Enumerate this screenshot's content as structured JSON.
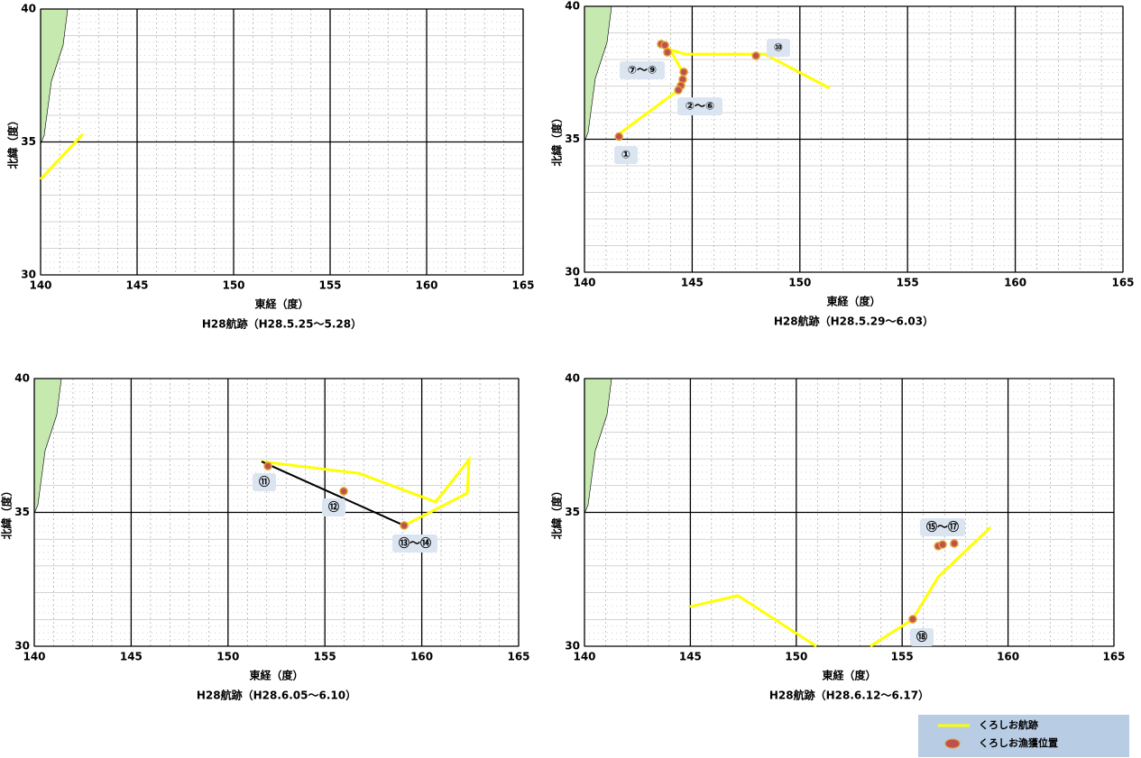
{
  "chart_data": [
    {
      "type": "map",
      "title": "H28航跡（H28.5.25～5.28）",
      "xlabel": "東経（度）",
      "ylabel": "北緯（度）",
      "xlim": [
        140,
        165
      ],
      "ylim": [
        30,
        40
      ],
      "xticks": [
        140,
        145,
        150,
        155,
        160,
        165
      ],
      "yticks": [
        30,
        35,
        40
      ],
      "tracks": [
        {
          "color": "#ffff00",
          "x": [
            140,
            142.2
          ],
          "y": [
            33.6,
            35.3
          ]
        }
      ],
      "points": {
        "x": [],
        "y": []
      },
      "annotations": []
    },
    {
      "type": "map",
      "title": "H28航跡（H28.5.29～6.03）",
      "xlabel": "東経（度）",
      "ylabel": "北緯（度）",
      "xlim": [
        140,
        165
      ],
      "ylim": [
        30,
        40
      ],
      "xticks": [
        140,
        145,
        150,
        155,
        160,
        165
      ],
      "yticks": [
        30,
        35,
        40
      ],
      "tracks": [
        {
          "color": "#ffff00",
          "x": [
            141.47,
            144.36,
            144.6,
            143.98,
            144.69,
            148.37,
            151.39
          ],
          "y": [
            35.12,
            36.85,
            37.46,
            38.37,
            38.2,
            38.2,
            36.92
          ]
        }
      ],
      "points": {
        "x": [
          141.6,
          143.56,
          143.73,
          143.85,
          144.61,
          144.56,
          144.48,
          144.36,
          147.96
        ],
        "y": [
          35.1,
          38.58,
          38.54,
          38.27,
          37.53,
          37.25,
          37.02,
          36.85,
          38.14
        ]
      },
      "annotations": [
        "①",
        "⑦～⑨",
        "②～⑥",
        "⑩"
      ]
    },
    {
      "type": "map",
      "title": "H28航跡（H28.6.05～6.10）",
      "xlabel": "東経（度）",
      "ylabel": "北緯（度）",
      "xlim": [
        140,
        165
      ],
      "ylim": [
        30,
        40
      ],
      "xticks": [
        140,
        145,
        150,
        155,
        160,
        165
      ],
      "yticks": [
        30,
        35,
        40
      ],
      "tracks": [
        {
          "color": "#ffff00",
          "x": [
            151.73,
            156.76,
            160.72,
            162.44,
            162.35,
            159.09
          ],
          "y": [
            36.9,
            36.46,
            35.39,
            36.97,
            35.72,
            34.51
          ]
        },
        {
          "color": "#000000",
          "x": [
            151.73,
            159.09
          ],
          "y": [
            36.9,
            34.51
          ]
        }
      ],
      "points": {
        "x": [
          152.06,
          155.97,
          159.09
        ],
        "y": [
          36.73,
          35.79,
          34.51
        ]
      },
      "annotations": [
        "⑪",
        "⑫",
        "⑬～⑭"
      ]
    },
    {
      "type": "map",
      "title": "H28航跡（H28.6.12～6.17）",
      "xlabel": "東経（度）",
      "ylabel": "北緯（度）",
      "xlim": [
        140,
        165
      ],
      "ylim": [
        30,
        40
      ],
      "xticks": [
        140,
        145,
        150,
        155,
        160,
        165
      ],
      "yticks": [
        30,
        35,
        40
      ],
      "tracks": [
        {
          "color": "#ffff00",
          "x": [
            144.98,
            147.24,
            150.95,
            null,
            153.5,
            155.5,
            156.7,
            159.17
          ],
          "y": [
            31.48,
            31.89,
            30,
            null,
            30,
            31.01,
            32.59,
            34.44
          ]
        }
      ],
      "points": {
        "x": [
          155.5,
          156.7,
          156.91,
          157.46
        ],
        "y": [
          31.01,
          33.74,
          33.8,
          33.84
        ]
      },
      "annotations": [
        "⑮～⑰",
        "⑱"
      ]
    }
  ],
  "legend": {
    "track": "くろしお航跡",
    "catch": "くろしお漁獲位置"
  }
}
